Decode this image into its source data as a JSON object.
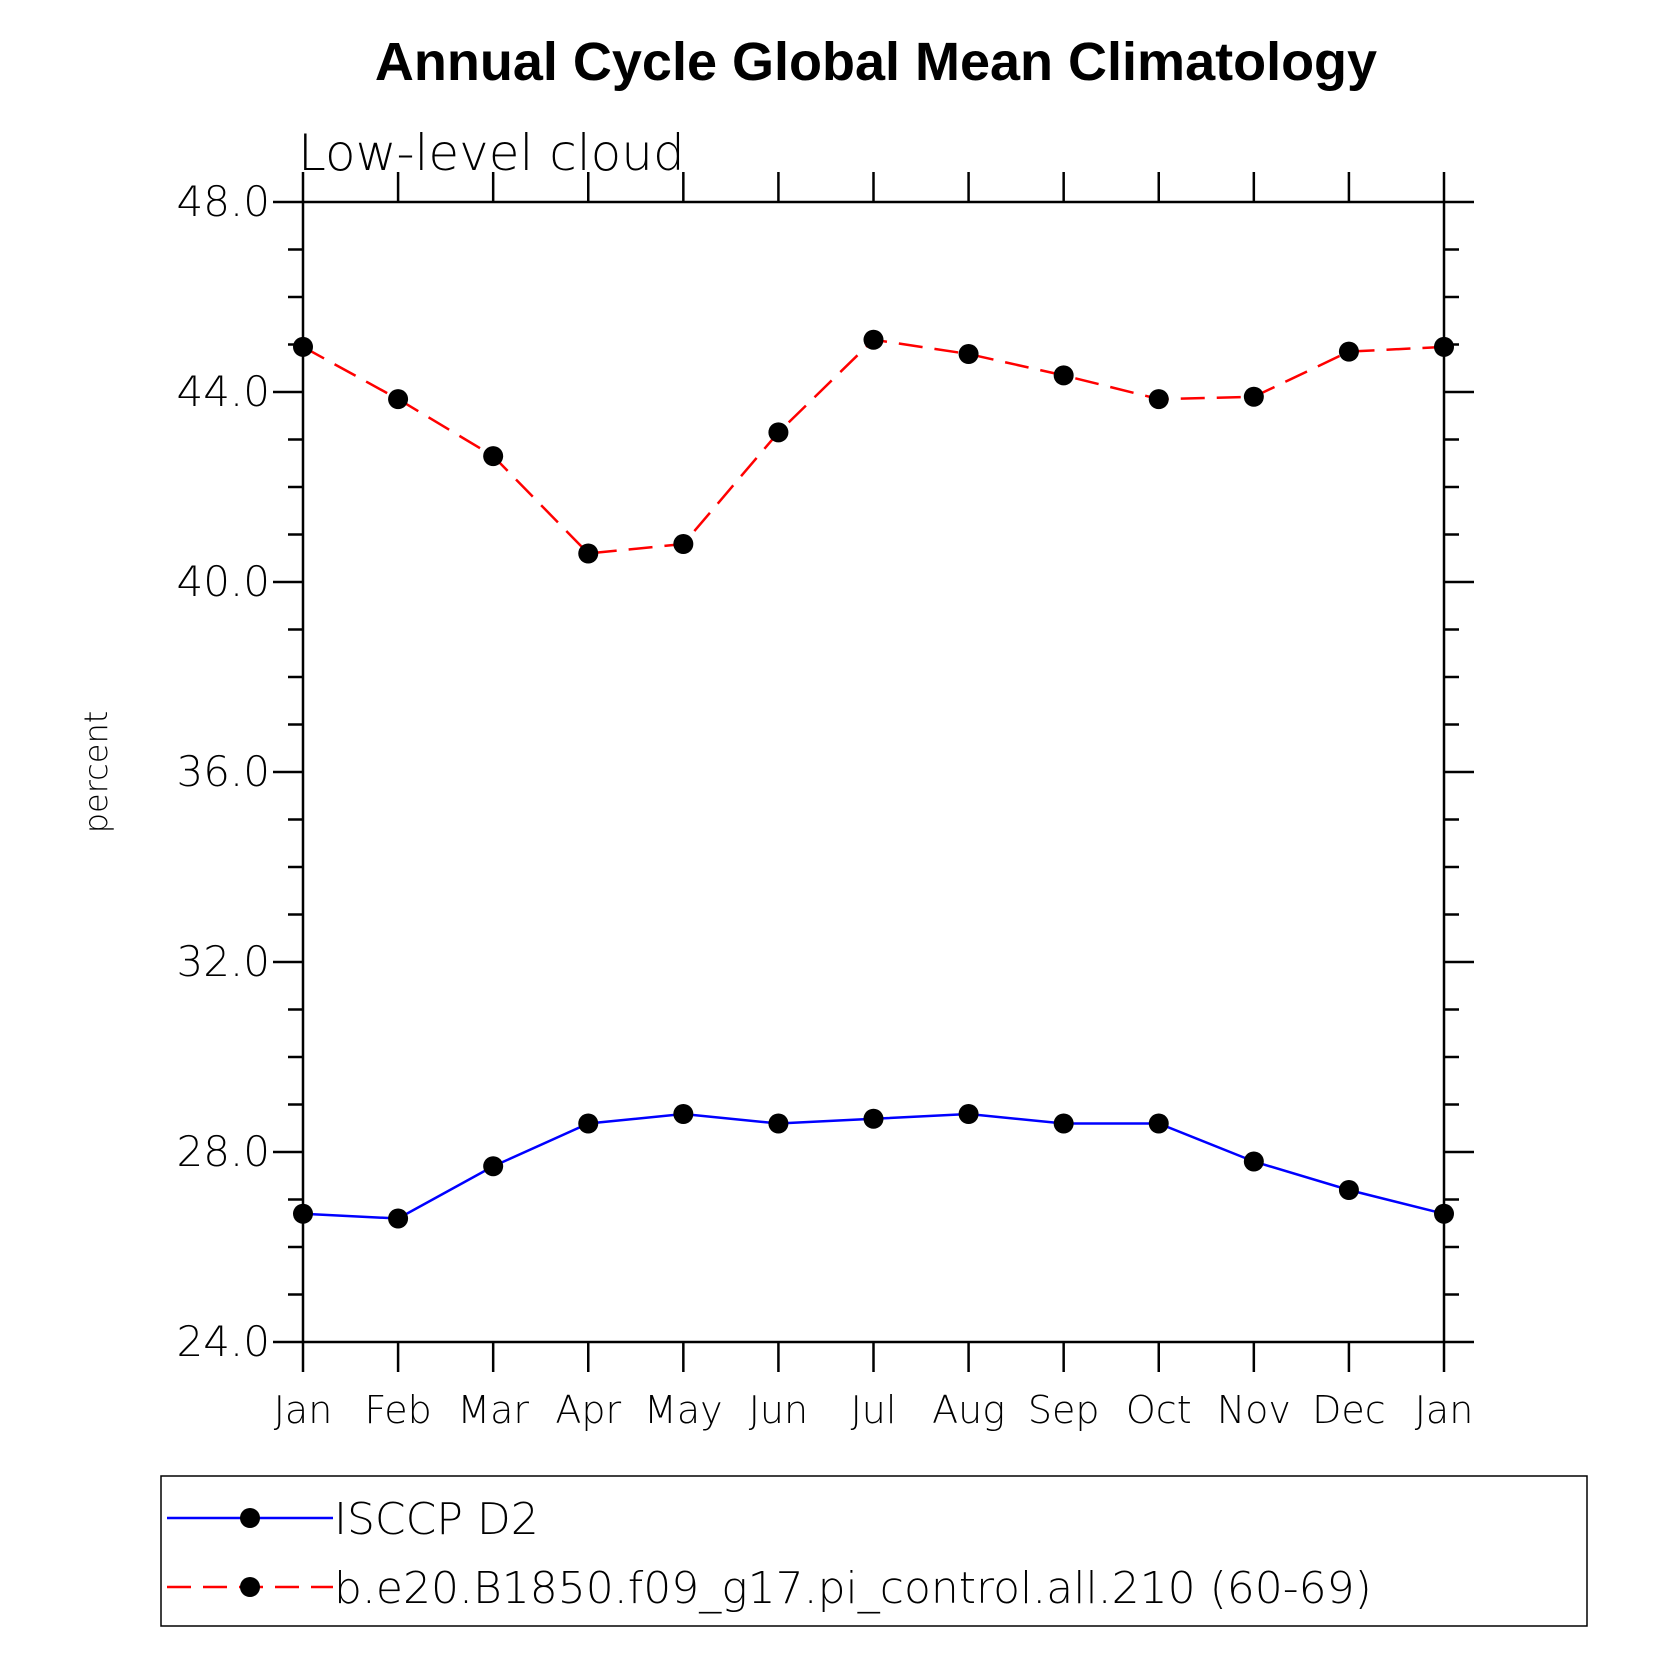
{
  "chart_data": {
    "type": "line",
    "title": "Annual Cycle Global Mean Climatology",
    "subtitle": "Low-level cloud",
    "ylabel": "percent",
    "xlabel": "",
    "categories": [
      "Jan",
      "Feb",
      "Mar",
      "Apr",
      "May",
      "Jun",
      "Jul",
      "Aug",
      "Sep",
      "Oct",
      "Nov",
      "Dec",
      "Jan"
    ],
    "ylim": [
      24.0,
      48.0
    ],
    "yticks": [
      "24.0",
      "28.0",
      "32.0",
      "36.0",
      "40.0",
      "44.0",
      "48.0"
    ],
    "ytick_values": [
      24,
      28,
      32,
      36,
      40,
      44,
      48
    ],
    "grid": false,
    "legend_position": "bottom",
    "series": [
      {
        "name": "ISCCP D2",
        "color": "#0000ff",
        "line_style": "solid",
        "marker": "filled-circle",
        "values": [
          26.7,
          26.6,
          27.7,
          28.6,
          28.8,
          28.6,
          28.7,
          28.8,
          28.6,
          28.6,
          27.8,
          27.2,
          26.7
        ]
      },
      {
        "name": "b.e20.B1850.f09_g17.pi_control.all.210 (60-69)",
        "color": "#ff0000",
        "line_style": "dashed",
        "marker": "filled-circle",
        "values": [
          44.95,
          43.85,
          42.65,
          40.6,
          40.8,
          43.15,
          45.1,
          44.8,
          44.35,
          43.85,
          43.9,
          44.85,
          44.95
        ]
      }
    ]
  }
}
